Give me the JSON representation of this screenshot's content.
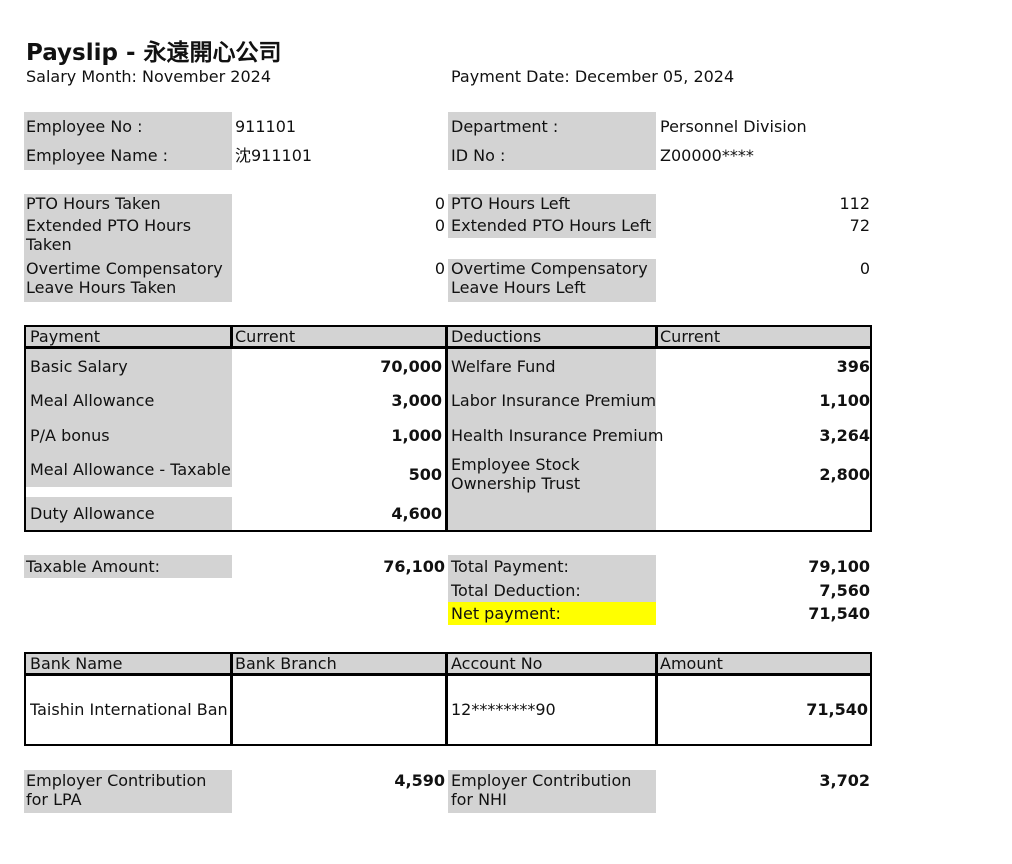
{
  "title": "Payslip - 永遠開心公司",
  "salary_month": "Salary Month: November 2024",
  "payment_date": "Payment Date: December 05, 2024",
  "employee": {
    "no_label": "Employee No :",
    "no_value": "911101",
    "name_label": "Employee Name :",
    "name_value": "沈911101",
    "dept_label": "Department :",
    "dept_value": "Personnel Division",
    "id_label": "ID No :",
    "id_value": "Z00000****"
  },
  "leave": {
    "pto_taken_label": "PTO Hours Taken",
    "pto_taken_value": "0",
    "pto_left_label": "PTO Hours Left",
    "pto_left_value": "112",
    "ext_taken_label": "Extended PTO Hours Taken",
    "ext_taken_value": "0",
    "ext_left_label": "Extended PTO Hours Left",
    "ext_left_value": "72",
    "ot_taken_label": "Overtime Compensatory Leave Hours Taken",
    "ot_taken_value": "0",
    "ot_left_label": "Overtime Compensatory Leave Hours Left",
    "ot_left_value": "0"
  },
  "pay_table": {
    "h_payment": "Payment",
    "h_current1": "Current",
    "h_deductions": "Deductions",
    "h_current2": "Current",
    "payments": [
      {
        "label": "Basic Salary",
        "value": "70,000"
      },
      {
        "label": "Meal Allowance",
        "value": "3,000"
      },
      {
        "label": "P/A bonus",
        "value": "1,000"
      },
      {
        "label": "Meal Allowance - Taxable",
        "value": "500"
      },
      {
        "label": "Duty Allowance",
        "value": "4,600"
      }
    ],
    "deductions": [
      {
        "label": "Welfare Fund",
        "value": "396"
      },
      {
        "label": "Labor Insurance Premium",
        "value": "1,100"
      },
      {
        "label": "Health Insurance Premium",
        "value": "3,264"
      },
      {
        "label": "Employee Stock Ownership Trust",
        "value": "2,800"
      }
    ]
  },
  "totals": {
    "taxable_label": "Taxable Amount:",
    "taxable_value": "76,100",
    "total_payment_label": "Total Payment:",
    "total_payment_value": "79,100",
    "total_deduction_label": "Total Deduction:",
    "total_deduction_value": "7,560",
    "net_label": "Net payment:",
    "net_value": "71,540"
  },
  "bank": {
    "h_name": "Bank Name",
    "h_branch": "Bank Branch",
    "h_account": "Account No",
    "h_amount": "Amount",
    "name": "Taishin International Bank",
    "branch": "",
    "account": "12********90",
    "amount": "71,540"
  },
  "employer": {
    "lpa_label": "Employer Contribution for LPA",
    "lpa_value": "4,590",
    "nhi_label": "Employer Contribution for NHI",
    "nhi_value": "3,702"
  },
  "colors": {
    "label_bg": "#d3d3d3",
    "highlight": "#ffff00",
    "border": "#000000"
  }
}
